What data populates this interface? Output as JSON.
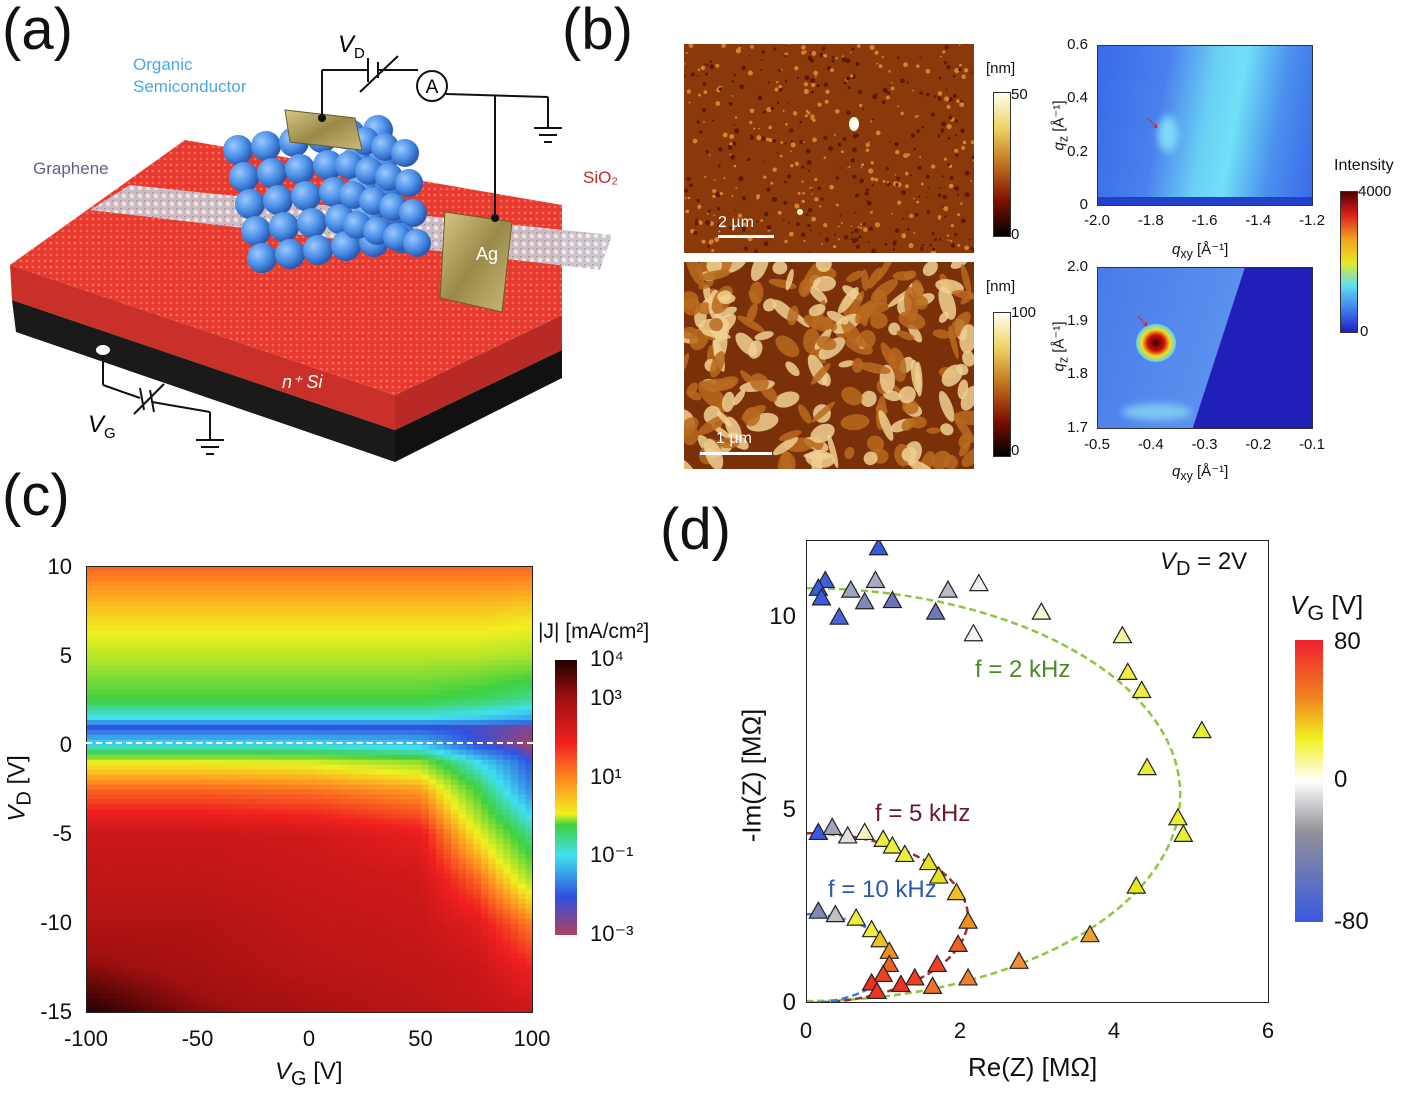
{
  "panel_a": {
    "label": "(a)",
    "organic_label": "Organic Semiconductor",
    "graphene_label": "Graphene",
    "sio2_label": "SiO₂",
    "ag_label": "Ag",
    "si_label": "n⁺ Si",
    "vd_label": "V",
    "vd_sub": "D",
    "vg_label": "V",
    "vg_sub": "G",
    "ammeter_label": "A",
    "colors": {
      "substrate": "#e8392f",
      "base": "#1a1a1a",
      "semiconductor": "#4a8fe6",
      "electrode": "#b8a25a"
    }
  },
  "panel_b": {
    "label": "(b)",
    "afm_top": {
      "unit": "[nm]",
      "max": "50",
      "min": "0",
      "scale_bar": "2 µm"
    },
    "afm_bottom": {
      "unit": "[nm]",
      "max": "100",
      "min": "0",
      "scale_bar": "1 µm"
    },
    "giwaxs_top": {
      "xlabel": "q",
      "xlabel_sub": "xy",
      "xunit": " [Å⁻¹]",
      "ylabel": "q",
      "ylabel_sub": "z",
      "yunit": " [Å⁻¹]",
      "xticks": [
        "-2.0",
        "-1.8",
        "-1.6",
        "-1.4",
        "-1.2"
      ],
      "yticks": [
        "0.6",
        "0.4",
        "0.2",
        "0"
      ]
    },
    "giwaxs_bottom": {
      "xlabel": "q",
      "xlabel_sub": "xy",
      "xunit": " [Å⁻¹]",
      "ylabel": "q",
      "ylabel_sub": "z",
      "yunit": " [Å⁻¹]",
      "xticks": [
        "-0.5",
        "-0.4",
        "-0.3",
        "-0.2",
        "-0.1"
      ],
      "yticks": [
        "2.0",
        "1.9",
        "1.8",
        "1.7"
      ]
    },
    "intensity": {
      "title": "Intensity",
      "max": "4000",
      "min": "0"
    }
  },
  "chart_data": [
    {
      "panel": "(c)",
      "type": "heatmap",
      "xlabel": "V",
      "xlabel_sub": "G",
      "xunit": " [V]",
      "ylabel": "V",
      "ylabel_sub": "D",
      "yunit": " [V]",
      "xlim": [
        -100,
        100
      ],
      "ylim": [
        -15,
        10
      ],
      "xticks": [
        "-100",
        "-50",
        "0",
        "50",
        "100"
      ],
      "yticks": [
        "10",
        "5",
        "0",
        "-5",
        "-10",
        "-15"
      ],
      "colorbar": {
        "title": "|J| [mA/cm²]",
        "scale": "log",
        "range": [
          0.001,
          10000
        ],
        "ticks": [
          "10⁴",
          "10³",
          "10¹",
          "10⁻¹",
          "10⁻³"
        ]
      },
      "x": [
        -100,
        -50,
        0,
        50,
        75,
        100
      ],
      "y": [
        10,
        7.5,
        5,
        2.5,
        1.5,
        1,
        0,
        -1,
        -2.5,
        -5,
        -7.5,
        -10,
        -12.5,
        -15
      ],
      "log10_J": [
        [
          2.0,
          2.0,
          2.0,
          2.0,
          2.0,
          2.0
        ],
        [
          1.3,
          1.3,
          1.3,
          1.3,
          1.3,
          1.2
        ],
        [
          0.7,
          0.7,
          0.7,
          0.7,
          0.7,
          0.6
        ],
        [
          0.0,
          0.0,
          0.0,
          0.0,
          -0.2,
          -0.5
        ],
        [
          -1.0,
          -1.0,
          -1.0,
          -1.0,
          -1.2,
          -1.6
        ],
        [
          -2.5,
          -2.5,
          -2.5,
          -2.5,
          -2.6,
          -2.8
        ],
        [
          -1.0,
          -1.0,
          -1.0,
          -1.3,
          -2.5,
          -3.0
        ],
        [
          1.0,
          1.0,
          0.9,
          0.5,
          -1.0,
          -2.5
        ],
        [
          2.0,
          2.0,
          1.9,
          1.6,
          0.0,
          -2.0
        ],
        [
          3.0,
          3.0,
          2.9,
          2.6,
          1.0,
          -0.5
        ],
        [
          3.1,
          3.1,
          3.0,
          2.9,
          2.0,
          0.5
        ],
        [
          3.3,
          3.3,
          3.1,
          3.0,
          2.7,
          1.8
        ],
        [
          3.6,
          3.4,
          3.2,
          3.1,
          3.0,
          2.5
        ],
        [
          4.0,
          3.6,
          3.4,
          3.2,
          3.1,
          3.0
        ]
      ],
      "annotation": "dashed line at V_D = 0"
    },
    {
      "panel": "(d)",
      "type": "scatter",
      "xlabel": "Re(Z) [MΩ]",
      "ylabel": "-Im(Z) [MΩ]",
      "xlim": [
        0,
        6
      ],
      "ylim": [
        0,
        12
      ],
      "xticks": [
        "0",
        "2",
        "4",
        "6"
      ],
      "yticks": [
        "0",
        "5",
        "10"
      ],
      "annotation_vd": "V",
      "annotation_vd_sub": "D",
      "annotation_vd_val": " = 2V",
      "colorbar": {
        "title": "V",
        "title_sub": "G",
        "title_unit": " [V]",
        "ticks": [
          "80",
          "0",
          "-80"
        ],
        "range": [
          -80,
          80
        ]
      },
      "series": [
        {
          "name": "f = 2 kHz",
          "fit_color": "#8cc63f",
          "label_color": "#4a8a2a",
          "fit": {
            "center": [
              0,
              5.4
            ],
            "rx": 4.85,
            "ry": 5.35
          },
          "points": [
            [
              0.94,
              11.8,
              "#3a5ae0"
            ],
            [
              0.25,
              10.95,
              "#4060d8"
            ],
            [
              0.16,
              10.75,
              "#3a5ae0"
            ],
            [
              0.2,
              10.5,
              "#3a5ae0"
            ],
            [
              0.43,
              10.0,
              "#4a64d8"
            ],
            [
              0.58,
              10.7,
              "#a0a6c0"
            ],
            [
              0.76,
              10.4,
              "#8088b8"
            ],
            [
              0.9,
              10.95,
              "#a8acc0"
            ],
            [
              1.12,
              10.43,
              "#6a74b8"
            ],
            [
              1.68,
              10.13,
              "#7078b8"
            ],
            [
              1.84,
              10.7,
              "#b8bcc8"
            ],
            [
              2.24,
              10.87,
              "#f0f0f0"
            ],
            [
              2.17,
              9.57,
              "#f4f4f4"
            ],
            [
              3.05,
              10.13,
              "#f8f8d8"
            ],
            [
              4.1,
              9.52,
              "#f4f4a0"
            ],
            [
              4.17,
              8.57,
              "#eeee40"
            ],
            [
              4.35,
              8.1,
              "#eeee40"
            ],
            [
              5.13,
              7.06,
              "#e8ee30"
            ],
            [
              4.42,
              6.1,
              "#e8ee30"
            ],
            [
              4.82,
              4.8,
              "#e8ee30"
            ],
            [
              4.89,
              4.37,
              "#e8ee30"
            ],
            [
              4.28,
              3.03,
              "#e8e820"
            ],
            [
              3.68,
              1.77,
              "#f0a030"
            ],
            [
              2.76,
              1.08,
              "#f09030"
            ],
            [
              2.1,
              0.65,
              "#f08030"
            ],
            [
              1.64,
              0.43,
              "#f07030"
            ]
          ]
        },
        {
          "name": "f = 5 kHz",
          "fit_color": "#a0283a",
          "label_color": "#6a1a2a",
          "fit": {
            "center": [
              0,
              2.2
            ],
            "rx": 2.1,
            "ry": 2.2
          },
          "points": [
            [
              0.16,
              4.42,
              "#3a5ae0"
            ],
            [
              0.34,
              4.55,
              "#a0a6c0"
            ],
            [
              0.54,
              4.33,
              "#e0e0e0"
            ],
            [
              0.76,
              4.42,
              "#f4f4c0"
            ],
            [
              1.0,
              4.24,
              "#eeee40"
            ],
            [
              1.12,
              4.07,
              "#eeee40"
            ],
            [
              1.28,
              3.85,
              "#eeee40"
            ],
            [
              1.59,
              3.64,
              "#e8e020"
            ],
            [
              1.72,
              3.29,
              "#e8e020"
            ],
            [
              1.95,
              2.86,
              "#f0c020"
            ],
            [
              2.1,
              2.12,
              "#f09020"
            ],
            [
              1.97,
              1.52,
              "#f06020"
            ],
            [
              1.7,
              1.0,
              "#f04020"
            ],
            [
              1.41,
              0.65,
              "#f04020"
            ],
            [
              1.23,
              0.48,
              "#f03020"
            ]
          ]
        },
        {
          "name": "f = 10 kHz",
          "fit_color": "#3a7ad8",
          "label_color": "#2a5ab0",
          "fit": {
            "center": [
              0,
              1.15
            ],
            "rx": 1.1,
            "ry": 1.15
          },
          "points": [
            [
              0.16,
              2.38,
              "#8088b8"
            ],
            [
              0.38,
              2.29,
              "#c0c0c0"
            ],
            [
              0.65,
              2.2,
              "#eeee40"
            ],
            [
              0.85,
              1.9,
              "#eeee40"
            ],
            [
              0.96,
              1.64,
              "#f0c020"
            ],
            [
              1.08,
              1.34,
              "#f09020"
            ],
            [
              1.08,
              1.0,
              "#f06020"
            ],
            [
              1.0,
              0.74,
              "#f04020"
            ],
            [
              0.85,
              0.52,
              "#f03020"
            ],
            [
              0.92,
              0.3,
              "#f03020"
            ]
          ]
        }
      ]
    }
  ],
  "panel_c_label": "(c)",
  "panel_d_label": "(d)"
}
